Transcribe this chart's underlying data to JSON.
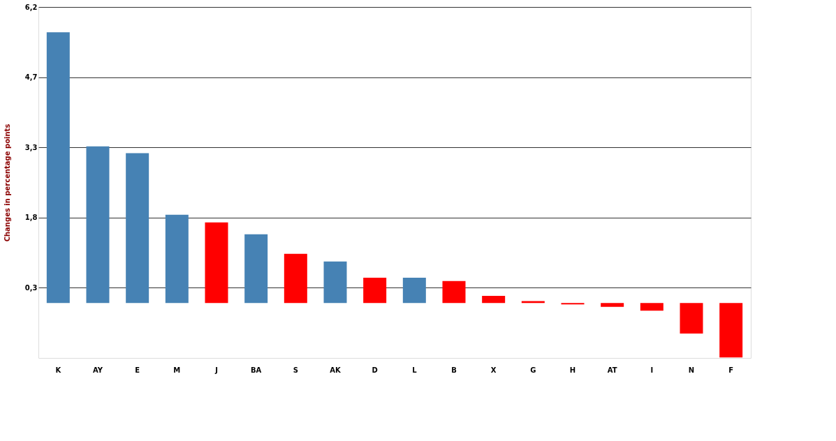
{
  "chart_data": {
    "type": "bar",
    "ylabel": "Changes in percentage points",
    "categories": [
      "K",
      "AY",
      "E",
      "M",
      "J",
      "BA",
      "S",
      "AK",
      "D",
      "L",
      "B",
      "X",
      "G",
      "H",
      "AT",
      "I",
      "N",
      "F"
    ],
    "values": [
      5.67,
      3.28,
      3.14,
      1.85,
      1.69,
      1.44,
      1.03,
      0.87,
      0.53,
      0.53,
      0.46,
      0.15,
      0.04,
      -0.03,
      -0.08,
      -0.16,
      -0.64,
      -1.14
    ],
    "colors": [
      "#4682b4",
      "#4682b4",
      "#4682b4",
      "#4682b4",
      "#ff0000",
      "#4682b4",
      "#ff0000",
      "#4682b4",
      "#ff0000",
      "#4682b4",
      "#ff0000",
      "#ff0000",
      "#ff0000",
      "#ff0000",
      "#ff0000",
      "#ff0000",
      "#ff0000",
      "#ff0000"
    ],
    "ylim": [
      -1.15,
      6.2
    ],
    "yticks": [
      {
        "value": 0.32,
        "label": "0,3"
      },
      {
        "value": 1.79,
        "label": "1,8"
      },
      {
        "value": 3.26,
        "label": "3,3"
      },
      {
        "value": 4.73,
        "label": "4,7"
      },
      {
        "value": 6.2,
        "label": "6,2"
      }
    ],
    "grid": "y"
  }
}
